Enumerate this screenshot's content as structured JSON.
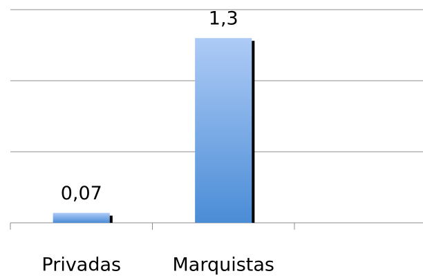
{
  "chart_data": {
    "type": "bar",
    "categories": [
      "Privadas",
      "Marquistas",
      null
    ],
    "values": [
      0.07,
      1.3,
      null
    ],
    "value_labels": [
      "0,07",
      "1,3",
      null
    ],
    "ylim": [
      0,
      1.5
    ],
    "yticks": [
      0,
      0.5,
      1,
      1.5
    ],
    "grid": true,
    "show_ytick_labels": false,
    "color": "#5b9be0"
  }
}
